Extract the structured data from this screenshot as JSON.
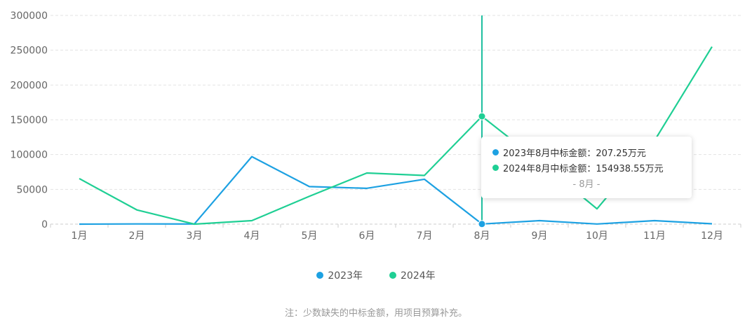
{
  "chart_data": {
    "type": "line",
    "categories": [
      "1月",
      "2月",
      "3月",
      "4月",
      "5月",
      "6月",
      "7月",
      "8月",
      "9月",
      "10月",
      "11月",
      "12月"
    ],
    "ylim": [
      0,
      300000
    ],
    "yticks": [
      0,
      50000,
      100000,
      150000,
      200000,
      250000,
      300000
    ],
    "grid": true,
    "legend_position": "bottom-center",
    "series": [
      {
        "name": "2023年",
        "color": "#1da1e2",
        "values": [
          0,
          300,
          200,
          97000,
          54000,
          51500,
          64500,
          207.25,
          5000,
          200,
          5000,
          500
        ]
      },
      {
        "name": "2024年",
        "color": "#1fcf94",
        "values": [
          65500,
          20500,
          0,
          5000,
          40000,
          73500,
          70000,
          154938.55,
          90000,
          22000,
          120000,
          255000
        ]
      }
    ],
    "tooltip": {
      "category_index": 7,
      "rows": [
        {
          "text": "2023年8月中标金额：207.25万元",
          "color": "#1da1e2"
        },
        {
          "text": "2024年8月中标金额：154938.55万元",
          "color": "#1fcf94"
        }
      ],
      "footer": "- 8月 -"
    },
    "note": "注：少数缺失的中标金额，用项目预算补充。"
  }
}
